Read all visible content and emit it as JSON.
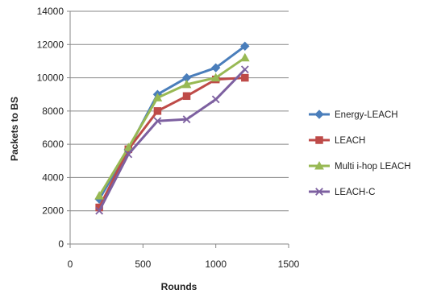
{
  "chart_data": {
    "type": "line",
    "title": "",
    "xlabel": "Rounds",
    "ylabel": "Packets to BS",
    "xlim": [
      0,
      1500
    ],
    "ylim": [
      0,
      14000
    ],
    "x_ticks": [
      "0",
      "500",
      "1000",
      "1500"
    ],
    "y_ticks": [
      "0",
      "2000",
      "4000",
      "6000",
      "8000",
      "10000",
      "12000",
      "14000"
    ],
    "grid": "horizontal",
    "legend_position": "right",
    "x": [
      200,
      400,
      600,
      800,
      1000,
      1200
    ],
    "series": [
      {
        "name": "Energy-LEACH",
        "color": "#4a7ebb",
        "marker": "diamond",
        "values": [
          2700,
          5700,
          9000,
          10000,
          10600,
          11900
        ]
      },
      {
        "name": "LEACH",
        "color": "#be4b48",
        "marker": "square",
        "values": [
          2200,
          5700,
          8000,
          8900,
          9900,
          10000
        ]
      },
      {
        "name": "Multi i-hop LEACH",
        "color": "#98b954",
        "marker": "triangle",
        "values": [
          2900,
          5800,
          8800,
          9600,
          10000,
          11200
        ]
      },
      {
        "name": "LEACH-C",
        "color": "#7d60a0",
        "marker": "x",
        "values": [
          2000,
          5400,
          7400,
          7500,
          8700,
          10500
        ]
      }
    ]
  }
}
